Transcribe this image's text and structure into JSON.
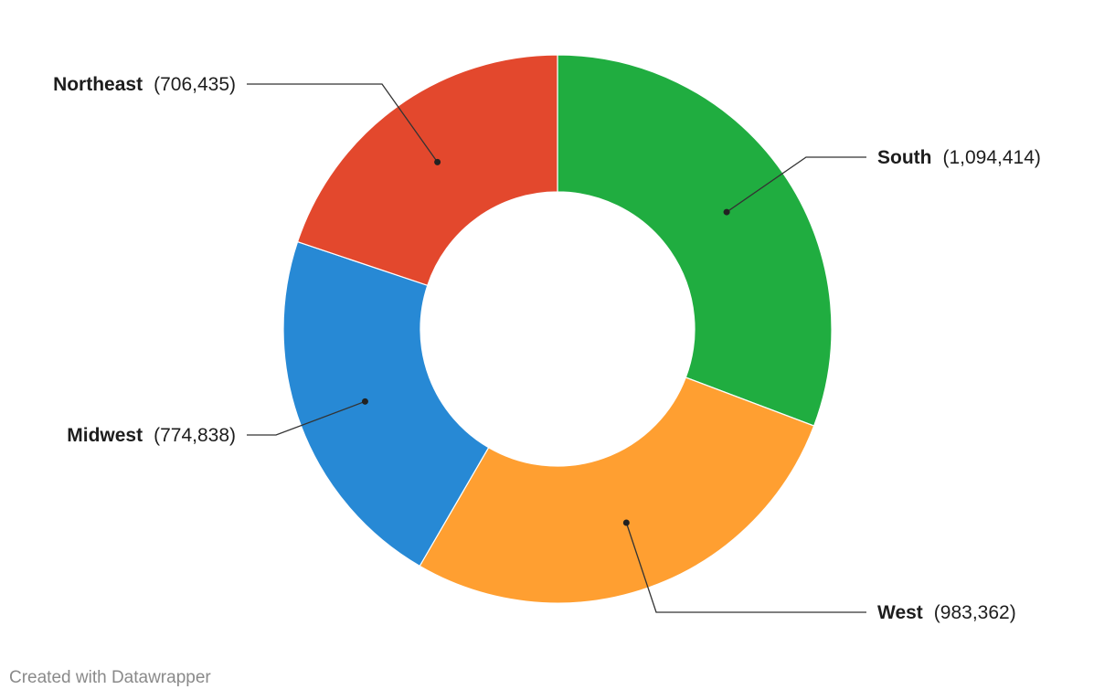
{
  "chart_data": {
    "type": "pie",
    "variant": "donut",
    "title": "",
    "categories": [
      "South",
      "West",
      "Midwest",
      "Northeast"
    ],
    "values": [
      1094414,
      983362,
      774838,
      706435
    ],
    "value_labels": [
      "1,094,414",
      "983,362",
      "774,838",
      "706,435"
    ],
    "colors": [
      "#20ad40",
      "#ff9f31",
      "#2789d5",
      "#e3482d"
    ],
    "start_angle_deg": 0,
    "direction": "clockwise",
    "legend": "none"
  },
  "footer": {
    "credit": "Created with Datawrapper"
  }
}
